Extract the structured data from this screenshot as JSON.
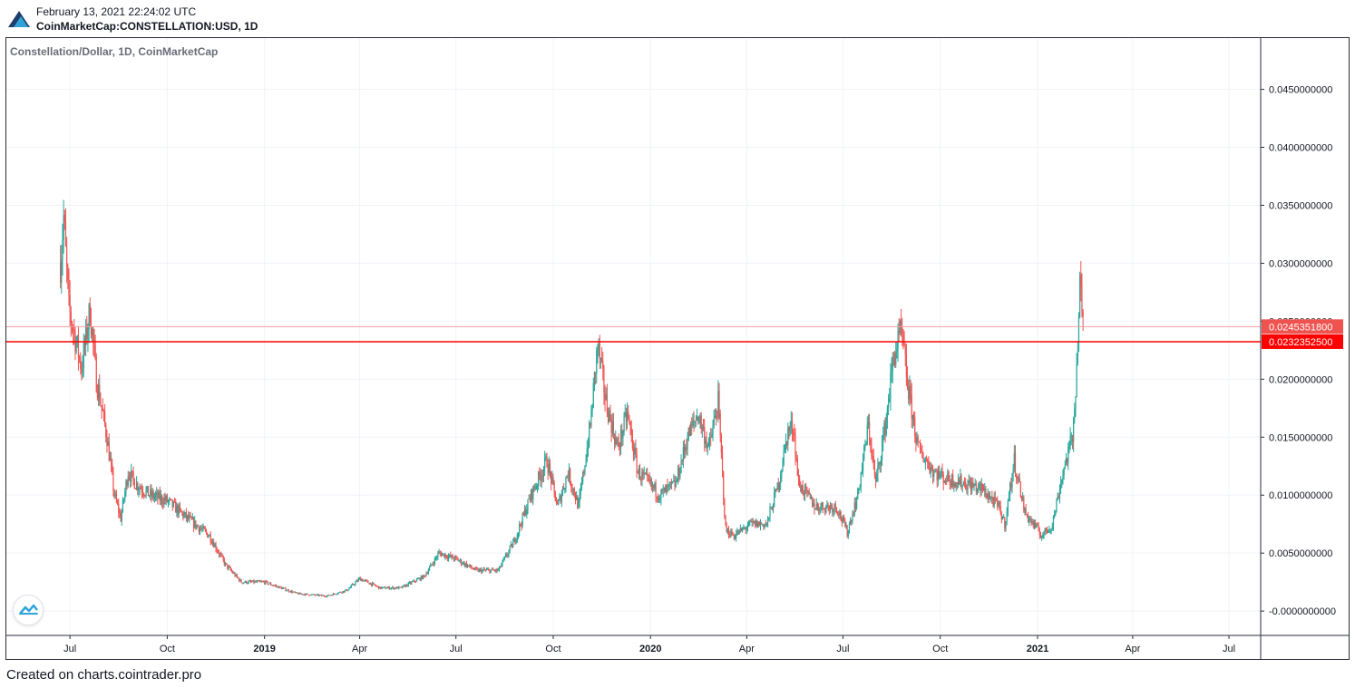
{
  "header": {
    "timestamp": "February 13, 2021 22:24:02 UTC",
    "symbol": "CoinMarketCap:CONSTELLATION:USD, 1D"
  },
  "footer": {
    "credit": "Created on charts.cointrader.pro"
  },
  "chart_data": {
    "type": "candlestick",
    "title": "Constellation/Dollar, 1D, CoinMarketCap",
    "ylim": [
      -0.0021,
      0.0495
    ],
    "xlim": [
      "2018-05-01",
      "2021-07-31"
    ],
    "y_ticks": [
      "0.0450000000",
      "0.0400000000",
      "0.0350000000",
      "0.0300000000",
      "0.0250000000",
      "0.0200000000",
      "0.0150000000",
      "0.0100000000",
      "0.0050000000",
      "-0.0000000000"
    ],
    "y_tick_values": [
      0.045,
      0.04,
      0.035,
      0.03,
      0.025,
      0.02,
      0.015,
      0.01,
      0.005,
      0.0
    ],
    "x_ticks": [
      {
        "label": "Jul",
        "date": "2018-07-01",
        "bold": false
      },
      {
        "label": "Oct",
        "date": "2018-10-01",
        "bold": false
      },
      {
        "label": "2019",
        "date": "2019-01-01",
        "bold": true
      },
      {
        "label": "Apr",
        "date": "2019-04-01",
        "bold": false
      },
      {
        "label": "Jul",
        "date": "2019-07-01",
        "bold": false
      },
      {
        "label": "Oct",
        "date": "2019-10-01",
        "bold": false
      },
      {
        "label": "2020",
        "date": "2020-01-01",
        "bold": true
      },
      {
        "label": "Apr",
        "date": "2020-04-01",
        "bold": false
      },
      {
        "label": "Jul",
        "date": "2020-07-01",
        "bold": false
      },
      {
        "label": "Oct",
        "date": "2020-10-01",
        "bold": false
      },
      {
        "label": "2021",
        "date": "2021-01-01",
        "bold": true
      },
      {
        "label": "Apr",
        "date": "2021-04-01",
        "bold": false
      },
      {
        "label": "Jul",
        "date": "2021-07-01",
        "bold": false
      }
    ],
    "price_lines": [
      {
        "value": 0.02453518,
        "label": "0.0245351800",
        "color": "#f0a0a0",
        "badge": "#ef5350"
      },
      {
        "value": 0.02323525,
        "label": "0.0232352500",
        "color": "#ff0000",
        "badge": "#ff0000"
      }
    ],
    "colors": {
      "up": "#26a69a",
      "down": "#ef5350",
      "grid": "#f0f3fa",
      "axis": "#2a2e39"
    },
    "close_path": [
      {
        "date": "2018-06-22",
        "close": 0.03
      },
      {
        "date": "2018-06-25",
        "close": 0.034
      },
      {
        "date": "2018-06-30",
        "close": 0.026
      },
      {
        "date": "2018-07-05",
        "close": 0.024
      },
      {
        "date": "2018-07-12",
        "close": 0.021
      },
      {
        "date": "2018-07-20",
        "close": 0.026
      },
      {
        "date": "2018-07-26",
        "close": 0.02
      },
      {
        "date": "2018-08-05",
        "close": 0.015
      },
      {
        "date": "2018-08-12",
        "close": 0.01
      },
      {
        "date": "2018-08-18",
        "close": 0.008
      },
      {
        "date": "2018-08-25",
        "close": 0.012
      },
      {
        "date": "2018-09-01",
        "close": 0.011
      },
      {
        "date": "2018-09-15",
        "close": 0.01
      },
      {
        "date": "2018-10-01",
        "close": 0.0095
      },
      {
        "date": "2018-10-20",
        "close": 0.008
      },
      {
        "date": "2018-11-10",
        "close": 0.0065
      },
      {
        "date": "2018-11-25",
        "close": 0.004
      },
      {
        "date": "2018-12-10",
        "close": 0.0025
      },
      {
        "date": "2019-01-01",
        "close": 0.0025
      },
      {
        "date": "2019-02-01",
        "close": 0.0015
      },
      {
        "date": "2019-03-01",
        "close": 0.0013
      },
      {
        "date": "2019-03-20",
        "close": 0.0018
      },
      {
        "date": "2019-04-01",
        "close": 0.0028
      },
      {
        "date": "2019-04-20",
        "close": 0.002
      },
      {
        "date": "2019-05-10",
        "close": 0.002
      },
      {
        "date": "2019-06-01",
        "close": 0.003
      },
      {
        "date": "2019-06-15",
        "close": 0.005
      },
      {
        "date": "2019-07-01",
        "close": 0.0045
      },
      {
        "date": "2019-07-20",
        "close": 0.0035
      },
      {
        "date": "2019-08-10",
        "close": 0.0035
      },
      {
        "date": "2019-08-25",
        "close": 0.006
      },
      {
        "date": "2019-09-10",
        "close": 0.01
      },
      {
        "date": "2019-09-25",
        "close": 0.013
      },
      {
        "date": "2019-10-05",
        "close": 0.009
      },
      {
        "date": "2019-10-15",
        "close": 0.012
      },
      {
        "date": "2019-10-25",
        "close": 0.009
      },
      {
        "date": "2019-11-05",
        "close": 0.016
      },
      {
        "date": "2019-11-12",
        "close": 0.023
      },
      {
        "date": "2019-11-20",
        "close": 0.018
      },
      {
        "date": "2019-12-01",
        "close": 0.014
      },
      {
        "date": "2019-12-10",
        "close": 0.017
      },
      {
        "date": "2019-12-20",
        "close": 0.012
      },
      {
        "date": "2020-01-10",
        "close": 0.01
      },
      {
        "date": "2020-01-25",
        "close": 0.011
      },
      {
        "date": "2020-02-05",
        "close": 0.015
      },
      {
        "date": "2020-02-15",
        "close": 0.017
      },
      {
        "date": "2020-02-25",
        "close": 0.014
      },
      {
        "date": "2020-03-05",
        "close": 0.018
      },
      {
        "date": "2020-03-12",
        "close": 0.007
      },
      {
        "date": "2020-03-20",
        "close": 0.0065
      },
      {
        "date": "2020-04-05",
        "close": 0.0075
      },
      {
        "date": "2020-04-20",
        "close": 0.0075
      },
      {
        "date": "2020-05-01",
        "close": 0.011
      },
      {
        "date": "2020-05-10",
        "close": 0.0155
      },
      {
        "date": "2020-05-15",
        "close": 0.016
      },
      {
        "date": "2020-05-20",
        "close": 0.011
      },
      {
        "date": "2020-06-05",
        "close": 0.009
      },
      {
        "date": "2020-06-25",
        "close": 0.009
      },
      {
        "date": "2020-07-05",
        "close": 0.0068
      },
      {
        "date": "2020-07-15",
        "close": 0.01
      },
      {
        "date": "2020-07-25",
        "close": 0.016
      },
      {
        "date": "2020-08-01",
        "close": 0.011
      },
      {
        "date": "2020-08-10",
        "close": 0.016
      },
      {
        "date": "2020-08-18",
        "close": 0.022
      },
      {
        "date": "2020-08-25",
        "close": 0.024
      },
      {
        "date": "2020-09-01",
        "close": 0.019
      },
      {
        "date": "2020-09-10",
        "close": 0.014
      },
      {
        "date": "2020-09-25",
        "close": 0.012
      },
      {
        "date": "2020-10-05",
        "close": 0.0115
      },
      {
        "date": "2020-10-25",
        "close": 0.011
      },
      {
        "date": "2020-11-10",
        "close": 0.0105
      },
      {
        "date": "2020-11-25",
        "close": 0.009
      },
      {
        "date": "2020-12-01",
        "close": 0.0075
      },
      {
        "date": "2020-12-10",
        "close": 0.013
      },
      {
        "date": "2020-12-20",
        "close": 0.0085
      },
      {
        "date": "2021-01-05",
        "close": 0.0065
      },
      {
        "date": "2021-01-15",
        "close": 0.0075
      },
      {
        "date": "2021-01-25",
        "close": 0.012
      },
      {
        "date": "2021-02-03",
        "close": 0.015
      },
      {
        "date": "2021-02-07",
        "close": 0.021
      },
      {
        "date": "2021-02-10",
        "close": 0.028
      },
      {
        "date": "2021-02-13",
        "close": 0.0245
      }
    ]
  }
}
